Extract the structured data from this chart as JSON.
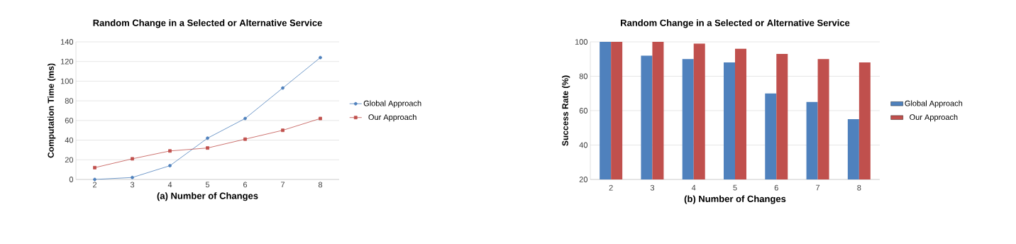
{
  "chart_data": [
    {
      "type": "line",
      "title": "Random Change in a Selected or Alternative Service",
      "xlabel": "(a) Number of Changes",
      "ylabel": "Computation Time (ms)",
      "categories": [
        "2",
        "3",
        "4",
        "5",
        "6",
        "7",
        "8"
      ],
      "ylim": [
        0,
        140
      ],
      "yticks": [
        0,
        20,
        40,
        60,
        80,
        100,
        120,
        140
      ],
      "grid": "y",
      "legend": "right",
      "series": [
        {
          "name": "Global Approach",
          "color": "#4f81bd",
          "marker": "circle",
          "values": [
            0,
            2,
            14,
            42,
            62,
            93,
            124
          ]
        },
        {
          "name": "Our Approach",
          "color": "#c0504d",
          "marker": "square",
          "values": [
            12,
            21,
            29,
            32,
            41,
            50,
            62
          ]
        }
      ]
    },
    {
      "type": "bar",
      "title": "Random Change in a Selected or Alternative Service",
      "xlabel": "(b) Number of Changes",
      "ylabel": "Success Rate (%)",
      "categories": [
        "2",
        "3",
        "4",
        "5",
        "6",
        "7",
        "8"
      ],
      "ylim": [
        20,
        100
      ],
      "yticks": [
        20,
        40,
        60,
        80,
        100
      ],
      "grid": "y",
      "legend": "right",
      "series": [
        {
          "name": "Global Approach",
          "color": "#4f81bd",
          "values": [
            100,
            92,
            90,
            88,
            70,
            65,
            55
          ]
        },
        {
          "name": "Our Approach",
          "color": "#c0504d",
          "values": [
            100,
            100,
            99,
            96,
            93,
            90,
            88
          ]
        }
      ]
    }
  ]
}
